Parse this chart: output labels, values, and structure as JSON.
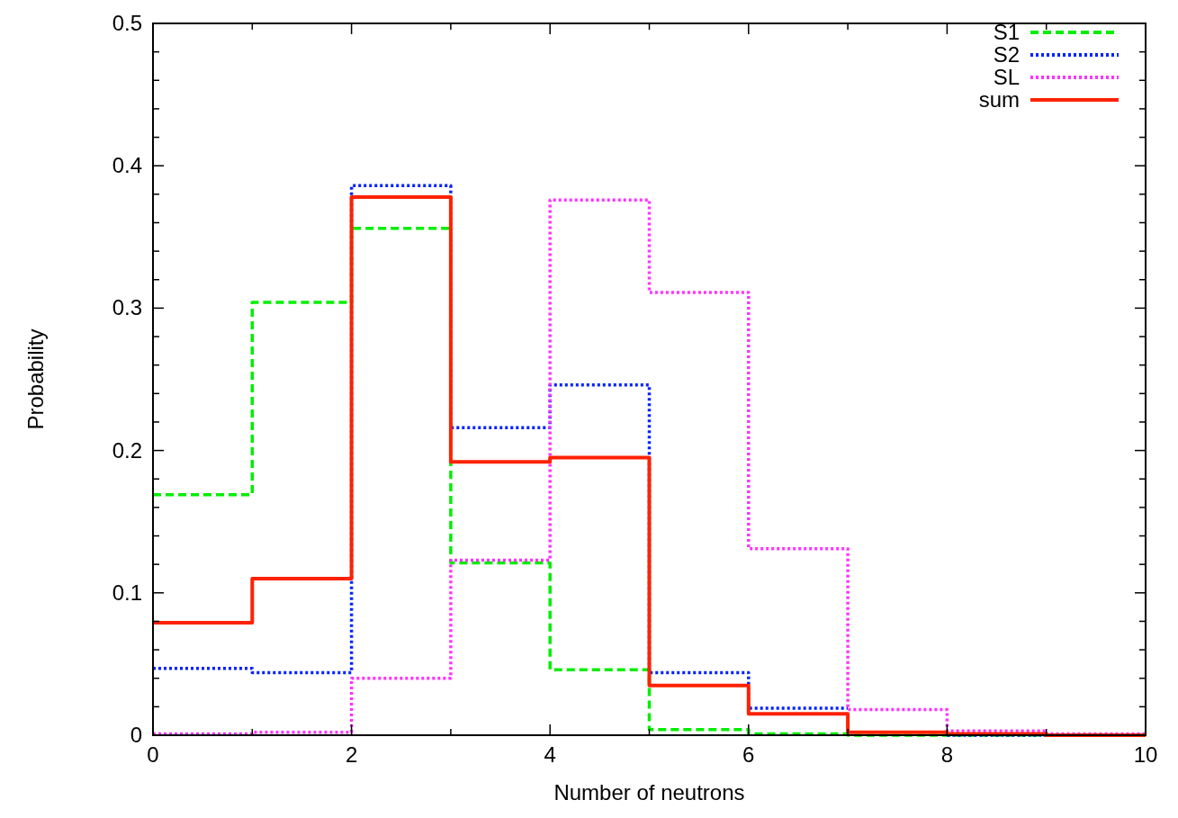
{
  "chart_data": {
    "type": "step",
    "xlabel": "Number of neutrons",
    "ylabel": "Probability",
    "x": [
      0,
      1,
      2,
      3,
      4,
      5,
      6,
      7,
      8,
      9,
      10
    ],
    "series": [
      {
        "name": "S1",
        "color": "#00ee00",
        "line_style": "dashed",
        "values": [
          0.169,
          0.304,
          0.356,
          0.121,
          0.046,
          0.004,
          0.001,
          0,
          0,
          0,
          0
        ]
      },
      {
        "name": "S2",
        "color": "#0022ff",
        "line_style": "dotted",
        "values": [
          0.047,
          0.044,
          0.386,
          0.216,
          0.246,
          0.044,
          0.019,
          null,
          0,
          0,
          0
        ]
      },
      {
        "name": "SL",
        "color": "#ff33ff",
        "line_style": "dotted",
        "values": [
          0.001,
          0.002,
          0.04,
          0.123,
          0.376,
          0.311,
          0.131,
          0.018,
          0.003,
          0.001,
          0.001
        ]
      },
      {
        "name": "sum",
        "color": "#ff2200",
        "line_style": "solid",
        "values": [
          0.079,
          0.11,
          0.378,
          0.192,
          0.195,
          0.035,
          0.015,
          0.002,
          0.001,
          0,
          0
        ]
      }
    ],
    "xlim": [
      0,
      10
    ],
    "ylim": [
      0,
      0.5
    ],
    "xticks": [
      0,
      {
        "value": 1,
        "label": null
      },
      2,
      {
        "value": 3,
        "label": null
      },
      4,
      {
        "value": 5,
        "label": null
      },
      6,
      {
        "value": 7,
        "label": null
      },
      8,
      {
        "value": 9,
        "label": null
      },
      10
    ],
    "yticks": [
      0,
      {
        "value": 0.02,
        "label": null
      },
      {
        "value": 0.04,
        "label": null
      },
      {
        "value": 0.06,
        "label": null
      },
      {
        "value": 0.08,
        "label": null
      },
      0.1,
      {
        "value": 0.12,
        "label": null
      },
      {
        "value": 0.14,
        "label": null
      },
      {
        "value": 0.16,
        "label": null
      },
      {
        "value": 0.18,
        "label": null
      },
      0.2,
      {
        "value": 0.22,
        "label": null
      },
      {
        "value": 0.24,
        "label": null
      },
      {
        "value": 0.26,
        "label": null
      },
      {
        "value": 0.28,
        "label": null
      },
      0.3,
      {
        "value": 0.32,
        "label": null
      },
      {
        "value": 0.34,
        "label": null
      },
      {
        "value": 0.36,
        "label": null
      },
      {
        "value": 0.38,
        "label": null
      },
      0.4,
      {
        "value": 0.42,
        "label": null
      },
      {
        "value": 0.44,
        "label": null
      },
      {
        "value": 0.46,
        "label": null
      },
      {
        "value": 0.48,
        "label": null
      },
      0.5
    ],
    "grid": false,
    "legend": "top right"
  }
}
